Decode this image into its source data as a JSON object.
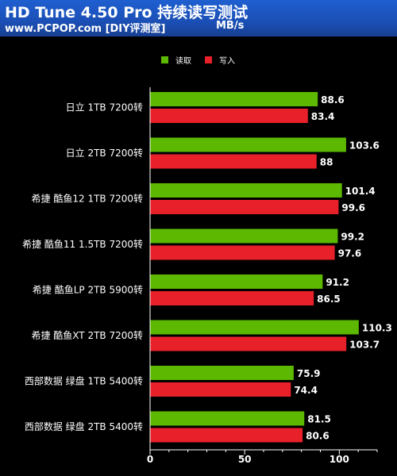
{
  "header": {
    "title": "HD Tune 4.50 Pro 持续读写测试",
    "subtitle": "www.PCPOP.com [DIY评测室]",
    "unit": "MB/s"
  },
  "chart_data": {
    "type": "bar",
    "orientation": "horizontal",
    "categories": [
      "日立 1TB 7200转",
      "日立 2TB 7200转",
      "希捷 酷鱼12 1TB 7200转",
      "希捷 酷鱼11 1.5TB 7200转",
      "希捷 酷鱼LP 2TB 5900转",
      "希捷 酷鱼XT 2TB 7200转",
      "西部数据 绿盘 1TB 5400转",
      "西部数据 绿盘 2TB 5400转"
    ],
    "series": [
      {
        "name": "读取",
        "color": "#5cb800",
        "values": [
          88.6,
          103.6,
          101.4,
          99.2,
          91.2,
          110.3,
          75.9,
          81.5
        ]
      },
      {
        "name": "写入",
        "color": "#e8202a",
        "values": [
          83.4,
          88,
          99.6,
          97.6,
          86.5,
          103.7,
          74.4,
          80.6
        ]
      }
    ],
    "xlim": [
      0,
      120
    ],
    "xticks": [
      0,
      50,
      100
    ],
    "legend_position": "top",
    "grid": false,
    "data_labels": true
  }
}
